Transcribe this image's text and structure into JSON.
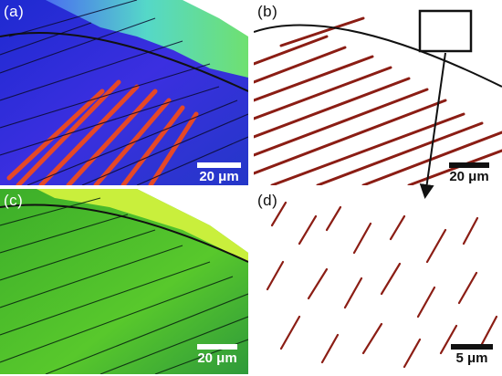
{
  "figure": {
    "panels": [
      {
        "label": "(a)",
        "scale_text": "20 μm",
        "map": "orientation-color-map"
      },
      {
        "label": "(b)",
        "scale_text": "20 μm",
        "map": "phase-map"
      },
      {
        "label": "(c)",
        "scale_text": "20 μm",
        "map": "kernel-misorientation-map"
      },
      {
        "label": "(d)",
        "scale_text": "5 μm",
        "map": "magnified-phase-map"
      }
    ],
    "colors": {
      "phase": "#8b1d14",
      "boundary": "#111111",
      "bg": "#ffffff",
      "orientation_blue": "#2a2cd8",
      "orientation_red": "#e2411c",
      "kam_green": "#5fcf2c"
    }
  }
}
